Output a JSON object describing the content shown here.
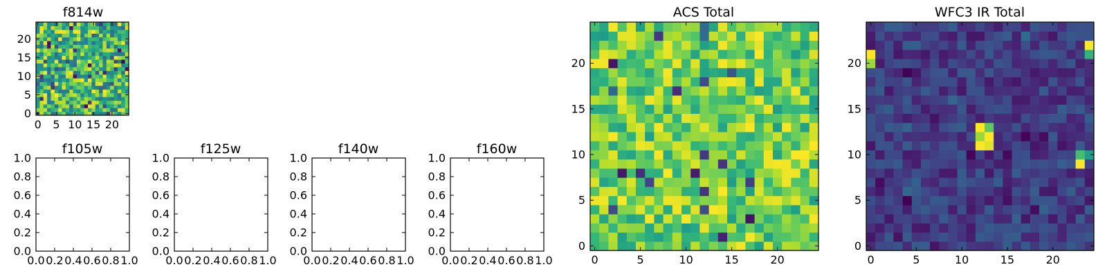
{
  "figure": {
    "colormap": "viridis",
    "colormap_stops": [
      "#440154",
      "#482878",
      "#3e4989",
      "#31688e",
      "#26828e",
      "#1f9e89",
      "#35b779",
      "#6ece58",
      "#b5de2b",
      "#fde725"
    ]
  },
  "chart_data": [
    {
      "id": "f814w",
      "type": "heatmap",
      "title": "f814w",
      "grid_size": [
        25,
        25
      ],
      "xlim": [
        -0.5,
        24.5
      ],
      "ylim": [
        -0.5,
        24.5
      ],
      "xticks": [
        0,
        5,
        10,
        15,
        20
      ],
      "yticks": [
        0,
        5,
        10,
        15,
        20
      ],
      "grid": false,
      "cells": {
        "form": "uniform random noise",
        "seed": 3,
        "range": [
          0.35,
          1.0
        ],
        "outliers": 0.05
      },
      "colorbar": false
    },
    {
      "id": "f105w",
      "type": "line",
      "title": "f105w",
      "xlim": [
        0.0,
        1.0
      ],
      "ylim": [
        0.0,
        1.0
      ],
      "xticks": [
        "0.0",
        "0.2",
        "0.4",
        "0.6",
        "0.8",
        "1.0"
      ],
      "yticks": [
        "0.0",
        "0.2",
        "0.4",
        "0.6",
        "0.8",
        "1.0"
      ],
      "series": [],
      "grid": false
    },
    {
      "id": "f125w",
      "type": "line",
      "title": "f125w",
      "xlim": [
        0.0,
        1.0
      ],
      "ylim": [
        0.0,
        1.0
      ],
      "xticks": [
        "0.0",
        "0.2",
        "0.4",
        "0.6",
        "0.8",
        "1.0"
      ],
      "yticks": [
        "0.0",
        "0.2",
        "0.4",
        "0.6",
        "0.8",
        "1.0"
      ],
      "series": [],
      "grid": false
    },
    {
      "id": "f140w",
      "type": "line",
      "title": "f140w",
      "xlim": [
        0.0,
        1.0
      ],
      "ylim": [
        0.0,
        1.0
      ],
      "xticks": [
        "0.0",
        "0.2",
        "0.4",
        "0.6",
        "0.8",
        "1.0"
      ],
      "yticks": [
        "0.0",
        "0.2",
        "0.4",
        "0.6",
        "0.8",
        "1.0"
      ],
      "series": [],
      "grid": false
    },
    {
      "id": "f160w",
      "type": "line",
      "title": "f160w",
      "xlim": [
        0.0,
        1.0
      ],
      "ylim": [
        0.0,
        1.0
      ],
      "xticks": [
        "0.0",
        "0.2",
        "0.4",
        "0.6",
        "0.8",
        "1.0"
      ],
      "yticks": [
        "0.0",
        "0.2",
        "0.4",
        "0.6",
        "0.8",
        "1.0"
      ],
      "series": [],
      "grid": false
    },
    {
      "id": "acs-total",
      "type": "heatmap",
      "title": "ACS Total",
      "grid_size": [
        25,
        25
      ],
      "xlim": [
        -0.5,
        24.5
      ],
      "ylim": [
        -0.5,
        24.5
      ],
      "xticks": [
        0,
        5,
        10,
        15,
        20
      ],
      "yticks": [
        0,
        5,
        10,
        15,
        20
      ],
      "grid": false,
      "cells": {
        "form": "uniform random noise",
        "seed": 11,
        "range": [
          0.55,
          1.0
        ],
        "outliers": 0.035
      },
      "colorbar": false
    },
    {
      "id": "wfc3-ir-total",
      "type": "heatmap",
      "title": "WFC3 IR Total",
      "grid_size": [
        25,
        25
      ],
      "xlim": [
        -0.5,
        24.5
      ],
      "ylim": [
        -0.5,
        24.5
      ],
      "xticks": [
        0,
        5,
        10,
        15,
        20
      ],
      "yticks": [
        0,
        5,
        10,
        15,
        20
      ],
      "grid": false,
      "cells": {
        "form": "low background noise with bright sources",
        "seed": 29,
        "range": [
          0.06,
          0.3
        ],
        "outliers": 0.06,
        "bright": [
          {
            "x": 12,
            "y": 13,
            "value": 1.0
          },
          {
            "x": 13,
            "y": 12,
            "value": 1.0
          },
          {
            "x": 12,
            "y": 11,
            "value": 1.0
          },
          {
            "x": 13,
            "y": 11,
            "value": 0.95
          },
          {
            "x": 12,
            "y": 12,
            "value": 0.85
          },
          {
            "x": 13,
            "y": 13,
            "value": 0.75
          },
          {
            "x": 23,
            "y": 9,
            "value": 1.0
          },
          {
            "x": 23,
            "y": 10,
            "value": 0.7
          },
          {
            "x": 24,
            "y": 10,
            "value": 0.55
          },
          {
            "x": 0,
            "y": 21,
            "value": 1.0
          },
          {
            "x": 0,
            "y": 20,
            "value": 0.85
          },
          {
            "x": 24,
            "y": 22,
            "value": 1.0
          },
          {
            "x": 24,
            "y": 21,
            "value": 0.65
          }
        ]
      },
      "colorbar": false
    }
  ]
}
